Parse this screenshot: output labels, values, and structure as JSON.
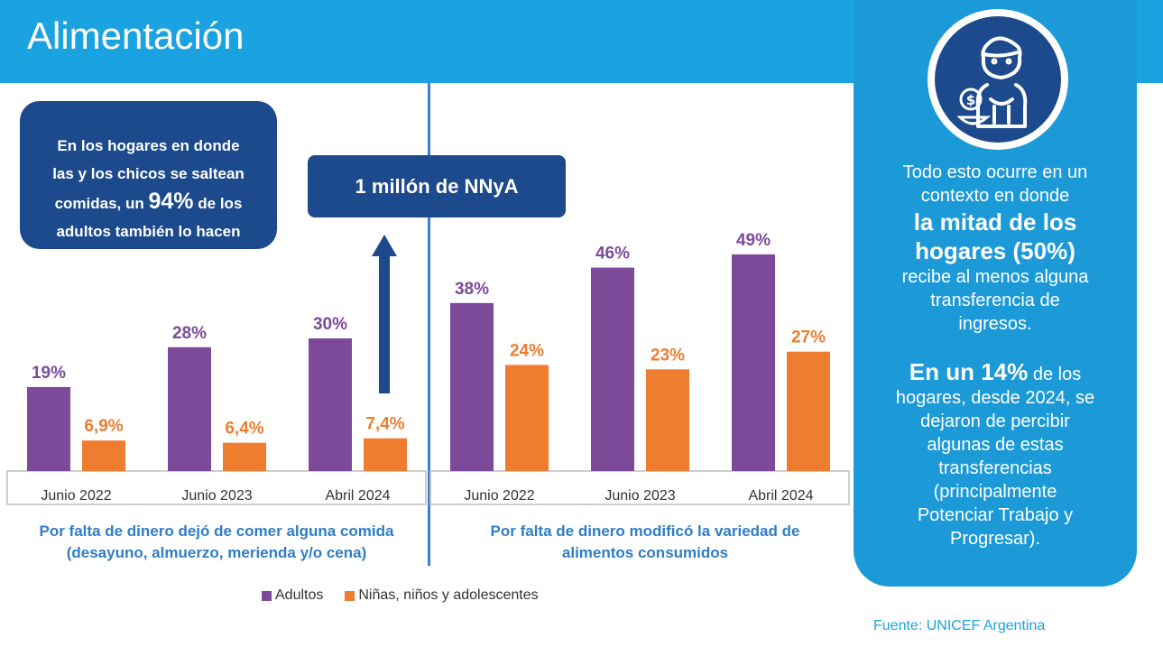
{
  "page_title": "Alimentación",
  "callout": {
    "line1": "En los hogares en donde",
    "line2": "las y los chicos se saltean",
    "line3_pre": "comidas, un ",
    "line3_big": "94%",
    "line3_post": " de los",
    "line4": "adultos también lo hacen"
  },
  "nnya_label": "1 millón de NNyA",
  "colors": {
    "adultos": "#7d4a9a",
    "ninos": "#ef7d30",
    "header": "#1aa3e0",
    "navy": "#1c4a8c"
  },
  "chart_data": [
    {
      "type": "bar",
      "title": "Por falta de dinero dejó de comer alguna comida (desayuno, almuerzo, merienda y/o cena)",
      "categories": [
        "Junio 2022",
        "Junio 2023",
        "Abril 2024"
      ],
      "series": [
        {
          "name": "Adultos",
          "values": [
            19,
            28,
            30
          ],
          "labels": [
            "19%",
            "28%",
            "30%"
          ]
        },
        {
          "name": "Niñas, niños y adolescentes",
          "values": [
            6.9,
            6.4,
            7.4
          ],
          "labels": [
            "6,9%",
            "6,4%",
            "7,4%"
          ]
        }
      ],
      "ylim": [
        0,
        50
      ],
      "legend": "bottom"
    },
    {
      "type": "bar",
      "title": "Por falta de dinero modificó la variedad de alimentos consumidos",
      "categories": [
        "Junio 2022",
        "Junio 2023",
        "Abril 2024"
      ],
      "series": [
        {
          "name": "Adultos",
          "values": [
            38,
            46,
            49
          ],
          "labels": [
            "38%",
            "46%",
            "49%"
          ]
        },
        {
          "name": "Niñas, niños y adolescentes",
          "values": [
            24,
            23,
            27
          ],
          "labels": [
            "24%",
            "23%",
            "27%"
          ]
        }
      ],
      "ylim": [
        0,
        50
      ],
      "legend": "bottom"
    }
  ],
  "captions": {
    "left_line1": "Por falta de dinero dejó de comer alguna comida",
    "left_line2": "(desayuno, almuerzo, merienda y/o cena)",
    "right_line1": "Por falta de dinero modificó la variedad de",
    "right_line2": "alimentos consumidos"
  },
  "legend": {
    "adultos": "Adultos",
    "ninos": "Niñas, niños y adolescentes"
  },
  "side_panel": {
    "l1": "Todo esto ocurre en un",
    "l2": "contexto en donde",
    "l3": "la mitad de los",
    "l4": "hogares (50%)",
    "l5": "recibe al menos alguna",
    "l6": "transferencia de",
    "l7": "ingresos.",
    "m1_bold": "En un 14%",
    "m1_rest": " de los",
    "m2": "hogares, desde 2024, se",
    "m3": "dejaron de percibir",
    "m4": "algunas de estas",
    "m5": "transferencias",
    "m6": "(principalmente",
    "m7": "Potenciar Trabajo y",
    "m8": "Progresar)."
  },
  "source": "Fuente: UNICEF Argentina",
  "icons": [
    "child-eating-icon",
    "dollar-coin-icon",
    "bowl-icon",
    "up-arrow-icon"
  ]
}
